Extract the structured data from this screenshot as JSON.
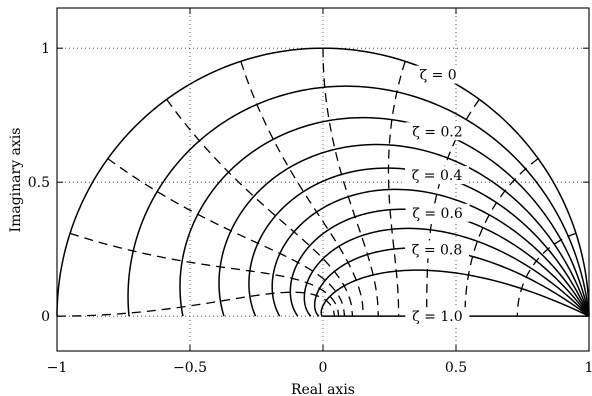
{
  "chart_data": {
    "type": "line",
    "xlabel": "Real axis",
    "ylabel": "Imaginary axis",
    "xlim": [
      -1,
      1
    ],
    "ylim": [
      -0.13,
      1.15
    ],
    "x_ticks": [
      "-1",
      "-0.5",
      "0",
      "0.5",
      "1"
    ],
    "y_ticks": [
      "0",
      "0.5",
      "1"
    ],
    "grid": true,
    "sampling_period_T": 1,
    "constant_damping_series": [
      {
        "label": "ζ = 0",
        "zeta": 0.0
      },
      {
        "label": "",
        "zeta": 0.1
      },
      {
        "label": "ζ = 0.2",
        "zeta": 0.2
      },
      {
        "label": "",
        "zeta": 0.3
      },
      {
        "label": "ζ = 0.4",
        "zeta": 0.4
      },
      {
        "label": "",
        "zeta": 0.5
      },
      {
        "label": "ζ = 0.6",
        "zeta": 0.6
      },
      {
        "label": "",
        "zeta": 0.7
      },
      {
        "label": "ζ = 0.8",
        "zeta": 0.8
      },
      {
        "label": "",
        "zeta": 0.9
      },
      {
        "label": "ζ = 1.0",
        "zeta": 1.0
      }
    ],
    "constant_natural_frequency_series": [
      {
        "wn_over_pi": 0.1
      },
      {
        "wn_over_pi": 0.2
      },
      {
        "wn_over_pi": 0.3
      },
      {
        "wn_over_pi": 0.4
      },
      {
        "wn_over_pi": 0.5
      },
      {
        "wn_over_pi": 0.6
      },
      {
        "wn_over_pi": 0.7
      },
      {
        "wn_over_pi": 0.8
      },
      {
        "wn_over_pi": 0.9
      },
      {
        "wn_over_pi": 1.0
      }
    ]
  }
}
